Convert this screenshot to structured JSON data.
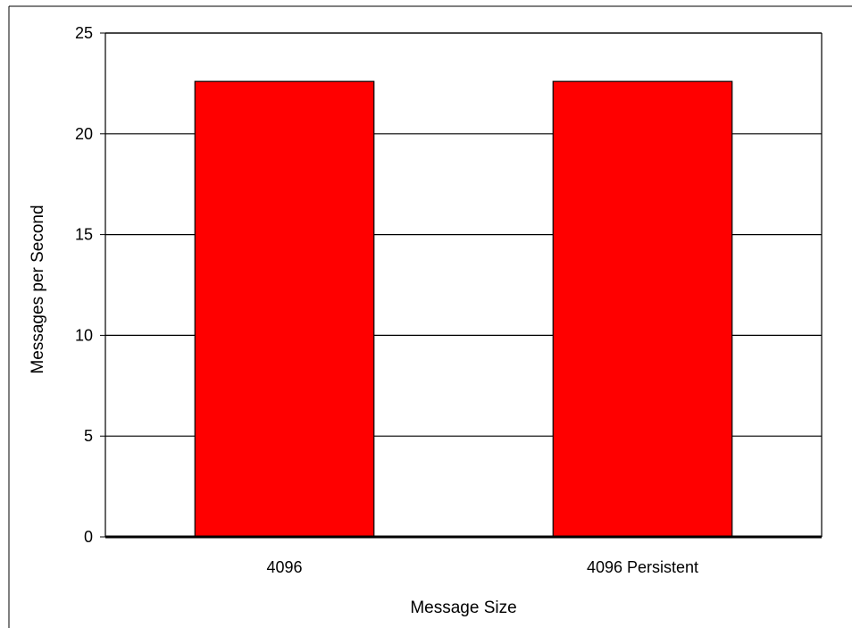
{
  "chart_data": {
    "type": "bar",
    "categories": [
      "4096",
      "4096 Persistent"
    ],
    "values": [
      22.6,
      22.6
    ],
    "xlabel": "Message Size",
    "ylabel": "Messages per Second",
    "ylim": [
      0,
      25
    ],
    "yticks": [
      0,
      5,
      10,
      15,
      20,
      25
    ],
    "grid": true,
    "legend": "none",
    "bar_color": "#ff0000",
    "bar_edge_color": "#000000",
    "background_color": "#ffffff"
  }
}
